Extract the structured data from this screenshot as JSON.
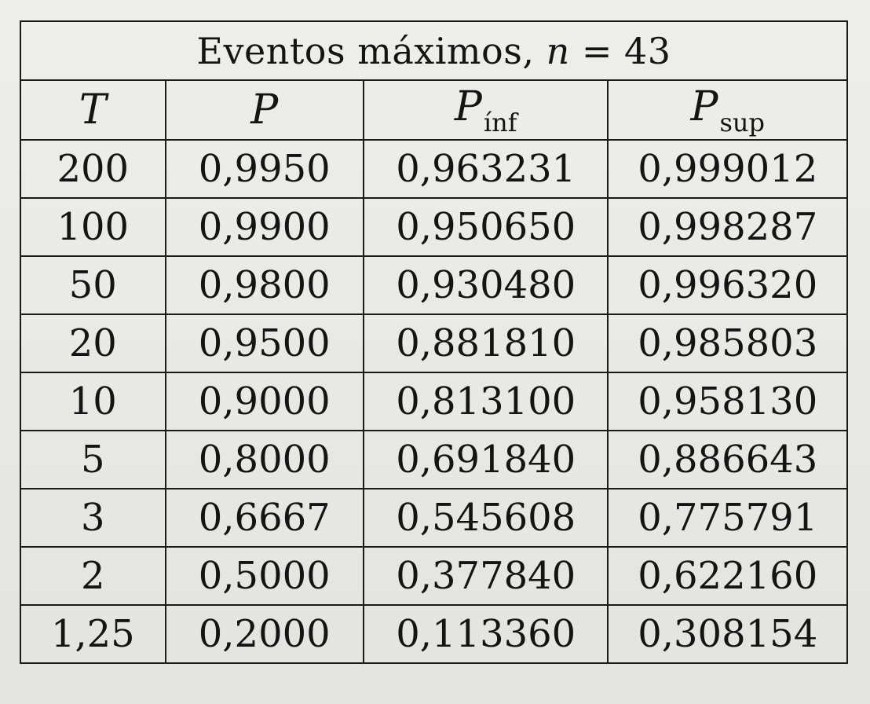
{
  "table": {
    "title_prefix": "Eventos máximos,",
    "title_var": "n",
    "title_suffix": "= 43",
    "headers": {
      "T": "T",
      "P": "P",
      "P_inf_main": "P",
      "P_inf_sub": "ínf",
      "P_sup_main": "P",
      "P_sup_sub": "sup"
    },
    "rows": [
      [
        "200",
        "0,9950",
        "0,963231",
        "0,999012"
      ],
      [
        "100",
        "0,9900",
        "0,950650",
        "0,998287"
      ],
      [
        "50",
        "0,9800",
        "0,930480",
        "0,996320"
      ],
      [
        "20",
        "0,9500",
        "0,881810",
        "0,985803"
      ],
      [
        "10",
        "0,9000",
        "0,813100",
        "0,958130"
      ],
      [
        "5",
        "0,8000",
        "0,691840",
        "0,886643"
      ],
      [
        "3",
        "0,6667",
        "0,545608",
        "0,775791"
      ],
      [
        "2",
        "0,5000",
        "0,377840",
        "0,622160"
      ],
      [
        "1,25",
        "0,2000",
        "0,113360",
        "0,308154"
      ]
    ]
  }
}
